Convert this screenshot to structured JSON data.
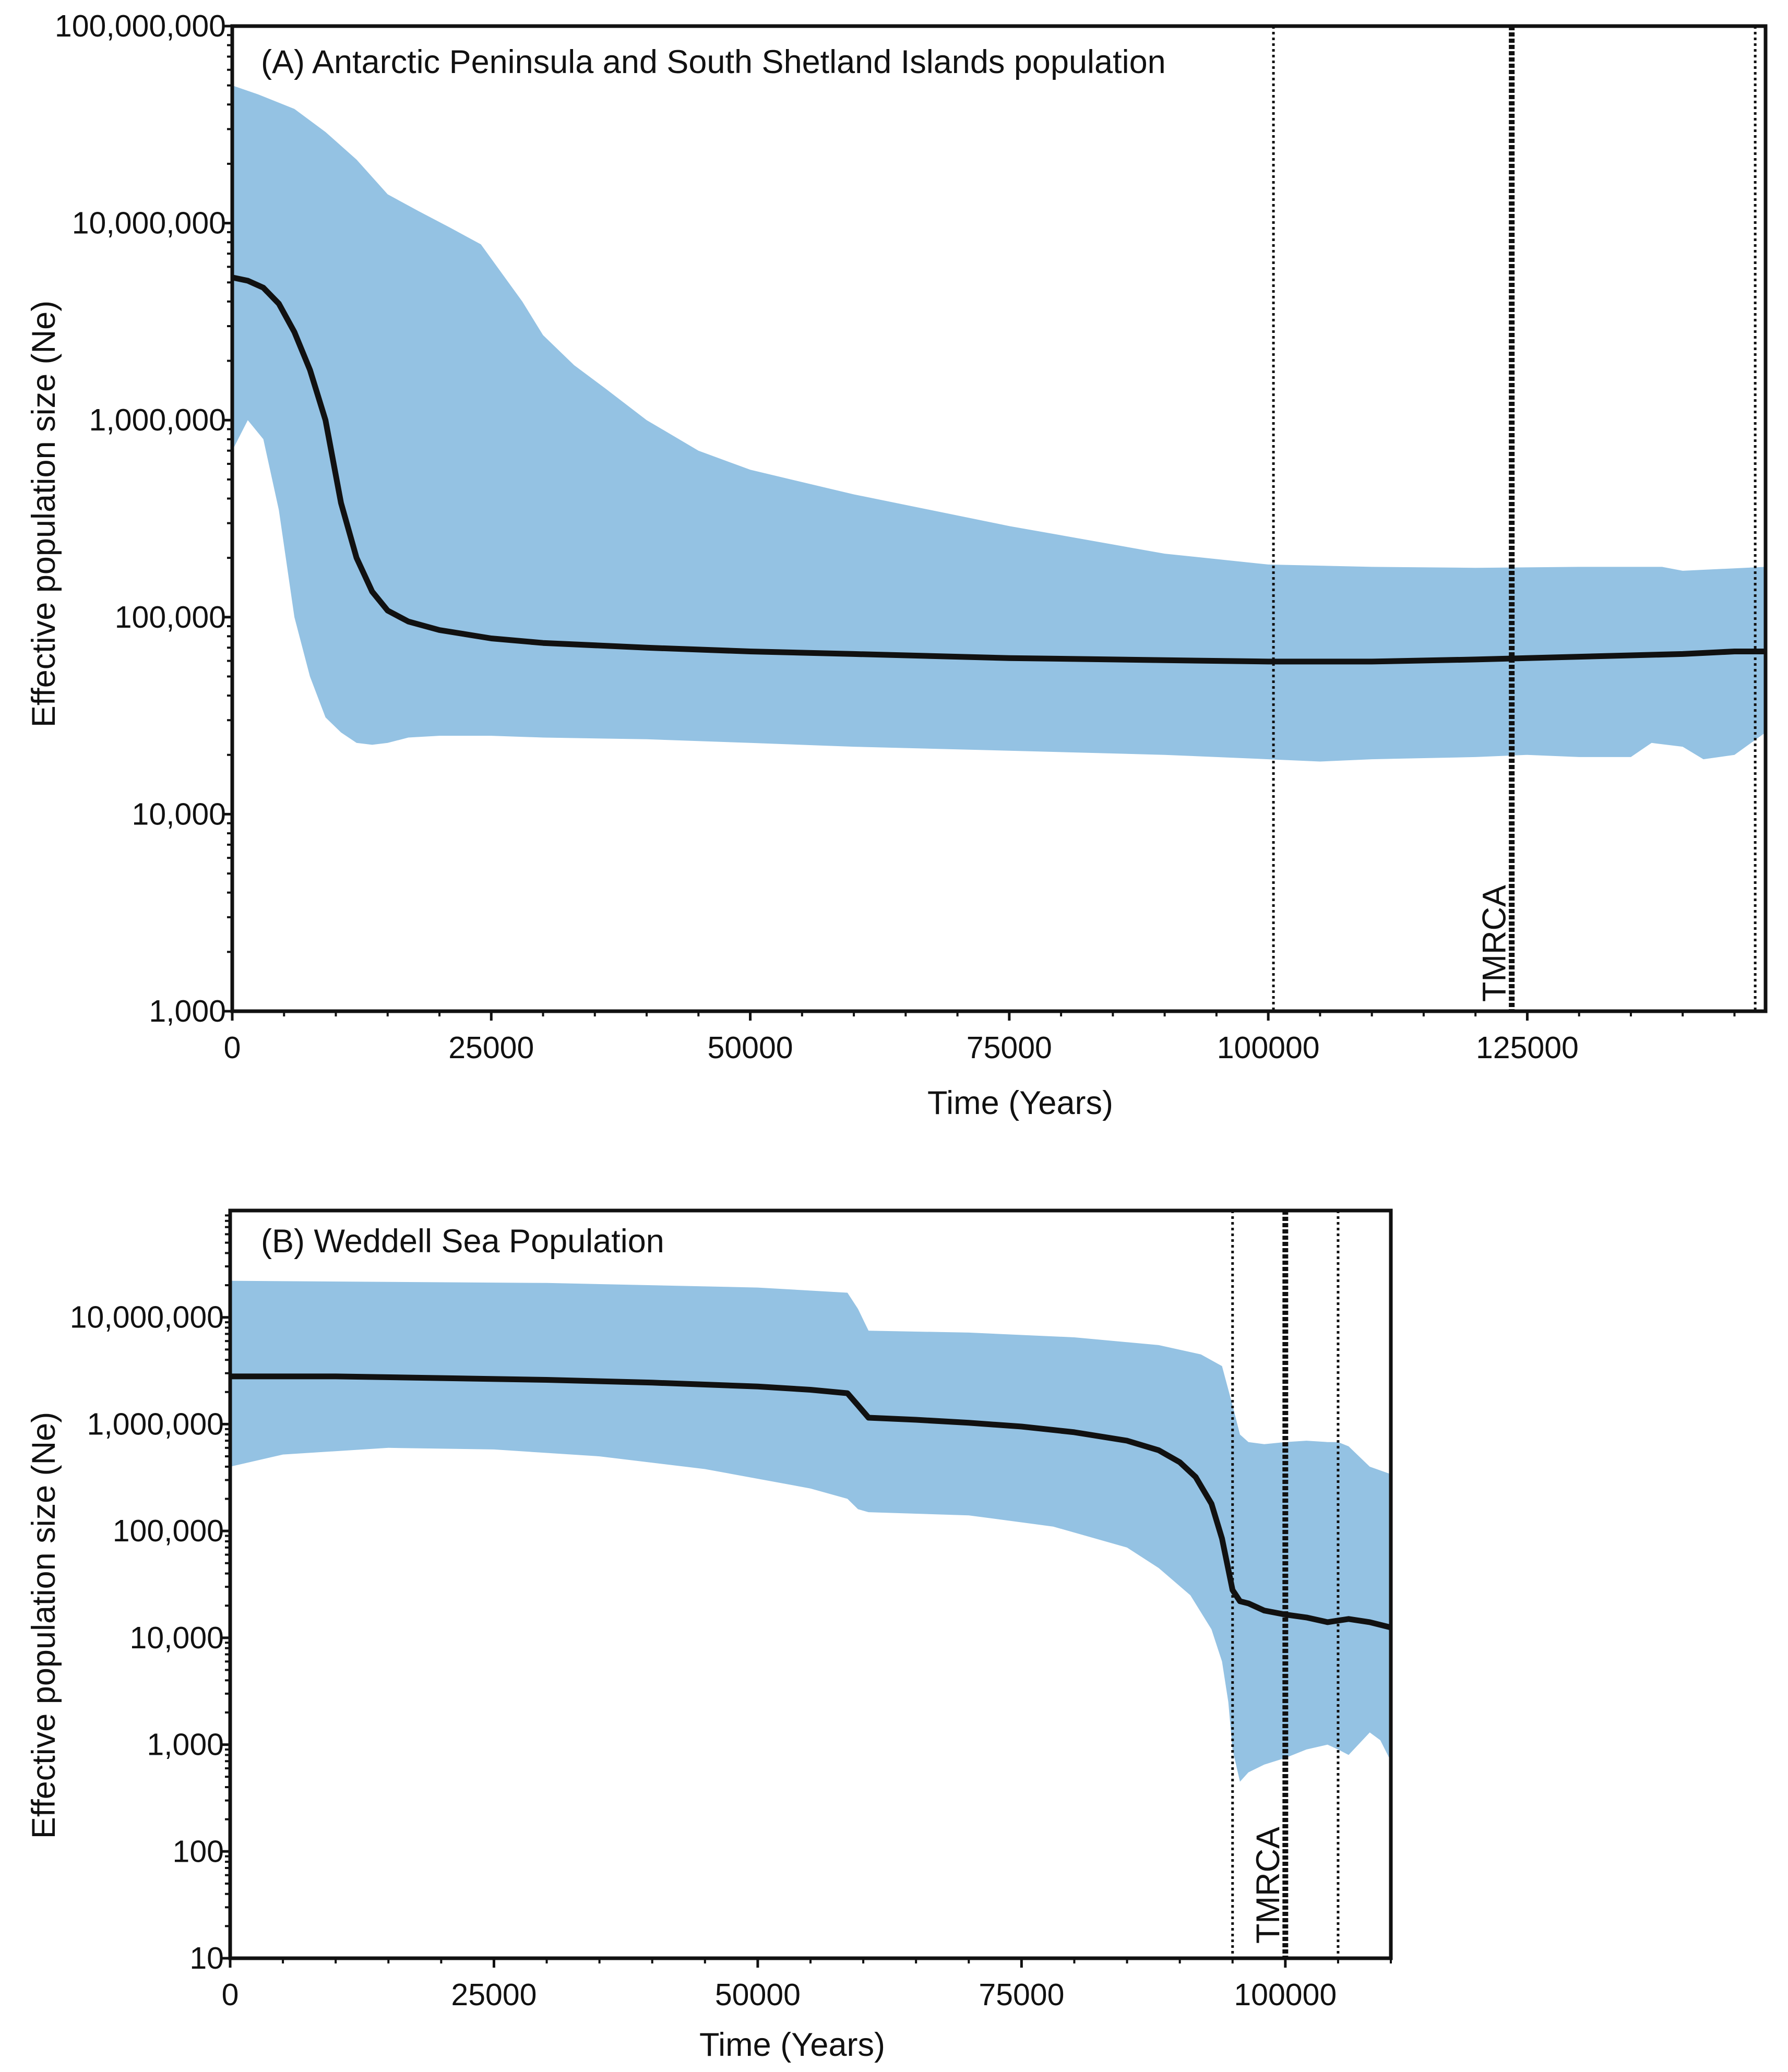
{
  "chart_data": [
    {
      "type": "area",
      "panel": "A",
      "title": "(A) Antarctic Peninsula and South Shetland Islands population",
      "xlabel": "Time (Years)",
      "ylabel": "Effective population size (Ne)",
      "yscale": "log",
      "xlim": [
        0,
        148000
      ],
      "ylim": [
        1000,
        100000000
      ],
      "x_ticks": [
        0,
        25000,
        50000,
        75000,
        100000,
        125000
      ],
      "x_tick_labels": [
        "0",
        "25000",
        "50000",
        "75000",
        "100000",
        "125000"
      ],
      "y_ticks": [
        1000,
        10000,
        100000,
        1000000,
        10000000,
        100000000
      ],
      "y_tick_labels": [
        "1,000",
        "10,000",
        "100,000",
        "1,000,000",
        "10,000,000",
        "100,000,000"
      ],
      "series": [
        {
          "name": "median",
          "color": "#111111",
          "x": [
            0,
            1500,
            3000,
            4500,
            6000,
            7500,
            9000,
            10500,
            12000,
            13500,
            15000,
            17000,
            20000,
            25000,
            30000,
            40000,
            50000,
            60000,
            75000,
            90000,
            100000,
            110000,
            120000,
            125000,
            130000,
            135000,
            140000,
            145000,
            148000
          ],
          "y": [
            5300000,
            5100000,
            4700000,
            3900000,
            2800000,
            1800000,
            1000000,
            380000,
            200000,
            135000,
            108000,
            95000,
            86000,
            78000,
            74000,
            70000,
            67000,
            65000,
            62000,
            60500,
            59500,
            59500,
            61000,
            62000,
            63000,
            64000,
            65000,
            67000,
            67000
          ]
        },
        {
          "name": "95% HPD upper",
          "color": "#94c2e3",
          "x": [
            0,
            2500,
            6000,
            9000,
            12000,
            15000,
            18000,
            21000,
            24000,
            28000,
            30000,
            33000,
            36000,
            40000,
            45000,
            50000,
            60000,
            75000,
            90000,
            100000,
            110000,
            120000,
            130000,
            138000,
            140000,
            148000
          ],
          "y": [
            50000000,
            45000000,
            38000000,
            29000000,
            21000000,
            14000000,
            11500000,
            9500000,
            7800000,
            4000000,
            2700000,
            1900000,
            1450000,
            1000000,
            700000,
            560000,
            420000,
            290000,
            210000,
            185000,
            180000,
            178000,
            180000,
            180000,
            172000,
            180000
          ]
        },
        {
          "name": "95% HPD lower",
          "color": "#94c2e3",
          "x": [
            0,
            1500,
            3000,
            4500,
            6000,
            7500,
            9000,
            10500,
            12000,
            13500,
            15000,
            17000,
            20000,
            25000,
            30000,
            40000,
            50000,
            60000,
            75000,
            90000,
            100000,
            105000,
            110000,
            120000,
            125000,
            130000,
            135000,
            137000,
            140000,
            142000,
            145000,
            148000
          ],
          "y": [
            700000,
            1000000,
            800000,
            350000,
            100000,
            50000,
            31000,
            26000,
            23000,
            22500,
            23000,
            24500,
            25000,
            25000,
            24500,
            24000,
            23000,
            22000,
            21000,
            20000,
            19000,
            18500,
            19000,
            19500,
            20000,
            19500,
            19500,
            23000,
            22000,
            19000,
            20000,
            26000
          ]
        }
      ],
      "vlines": [
        {
          "x": 100500,
          "style": "dotted"
        },
        {
          "x": 123500,
          "style": "dotted-bold",
          "label": "TMRCA"
        },
        {
          "x": 147000,
          "style": "dotted"
        }
      ]
    },
    {
      "type": "area",
      "panel": "B",
      "title": "(B) Weddell Sea Population",
      "xlabel": "Time (Years)",
      "ylabel": "Effective population size (Ne)",
      "yscale": "log",
      "xlim": [
        0,
        110000
      ],
      "ylim": [
        10,
        100000000
      ],
      "x_ticks": [
        0,
        25000,
        50000,
        75000,
        100000
      ],
      "x_tick_labels": [
        "0",
        "25000",
        "50000",
        "75000",
        "100000"
      ],
      "y_ticks": [
        10,
        100,
        1000,
        10000,
        100000,
        1000000,
        10000000
      ],
      "y_tick_labels": [
        "10",
        "100",
        "1,000",
        "10,000",
        "100,000",
        "1,000,000",
        "10,000,000"
      ],
      "series": [
        {
          "name": "median",
          "color": "#111111",
          "x": [
            0,
            10000,
            20000,
            30000,
            40000,
            50000,
            55000,
            58500,
            59500,
            60500,
            65000,
            70000,
            75000,
            80000,
            85000,
            88000,
            90000,
            91500,
            93000,
            94000,
            95000,
            95700,
            96500,
            98000,
            100000,
            102000,
            104000,
            105000,
            106000,
            108000,
            110000
          ],
          "y": [
            2800000,
            2800000,
            2700000,
            2600000,
            2450000,
            2250000,
            2100000,
            1950000,
            1500000,
            1150000,
            1100000,
            1030000,
            950000,
            840000,
            700000,
            570000,
            440000,
            320000,
            180000,
            85000,
            28000,
            22000,
            21000,
            18000,
            16500,
            15500,
            14000,
            14500,
            15000,
            14000,
            12500
          ]
        },
        {
          "name": "95% HPD upper",
          "color": "#94c2e3",
          "x": [
            0,
            30000,
            50000,
            58500,
            59500,
            60500,
            70000,
            80000,
            88000,
            92000,
            94000,
            95000,
            95700,
            96500,
            98000,
            100000,
            102000,
            104000,
            105000,
            106000,
            108000,
            110000
          ],
          "y": [
            22000000,
            21000000,
            19000000,
            17000000,
            12000000,
            7500000,
            7200000,
            6500000,
            5500000,
            4500000,
            3500000,
            1500000,
            800000,
            680000,
            650000,
            680000,
            700000,
            680000,
            680000,
            620000,
            400000,
            340000
          ]
        },
        {
          "name": "95% HPD lower",
          "color": "#94c2e3",
          "x": [
            0,
            5000,
            15000,
            25000,
            35000,
            45000,
            55000,
            58500,
            59500,
            60500,
            70000,
            78000,
            85000,
            88000,
            91000,
            93000,
            94000,
            94600,
            95000,
            95700,
            96500,
            98000,
            100000,
            102000,
            104000,
            105000,
            106000,
            108000,
            109000,
            110000
          ],
          "y": [
            400000,
            520000,
            600000,
            580000,
            500000,
            380000,
            250000,
            200000,
            160000,
            150000,
            140000,
            110000,
            70000,
            45000,
            25000,
            12000,
            6000,
            2500,
            900,
            450,
            550,
            650,
            750,
            900,
            1000,
            900,
            800,
            1300,
            1100,
            700
          ]
        }
      ],
      "vlines": [
        {
          "x": 95000,
          "style": "dotted"
        },
        {
          "x": 100000,
          "style": "dotted-bold",
          "label": "TMRCA"
        },
        {
          "x": 105000,
          "style": "dotted"
        }
      ]
    }
  ]
}
